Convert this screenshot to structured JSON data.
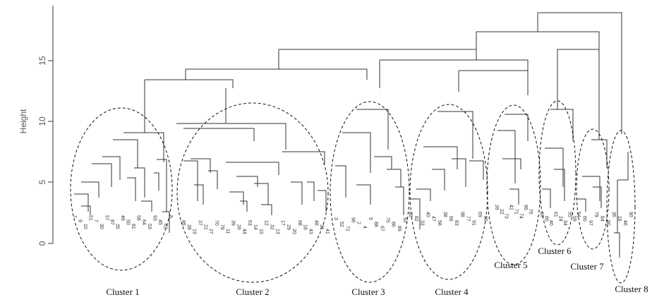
{
  "chart": {
    "ylabel": "Height",
    "yticks": [
      0,
      5,
      10,
      15
    ]
  },
  "clusters": [
    {
      "label": "Cluster 1"
    },
    {
      "label": "Cluster 2"
    },
    {
      "label": "Cluster 3"
    },
    {
      "label": "Cluster 4"
    },
    {
      "label": "Cluster 5"
    },
    {
      "label": "Cluster 6"
    },
    {
      "label": "Cluster 7"
    },
    {
      "label": "Cluster 8"
    }
  ],
  "leaves": [
    "7",
    "9",
    "10",
    "51",
    "7",
    "30",
    "57",
    "87",
    "35",
    "49",
    "50",
    "81",
    "58",
    "64",
    "53",
    "93",
    "45",
    "62",
    "8",
    "85",
    "28",
    "19",
    "37",
    "21",
    "27",
    "70",
    "78",
    "11",
    "39",
    "26",
    "44",
    "63",
    "14",
    "15",
    "12",
    "32",
    "13",
    "17",
    "29",
    "20",
    "68",
    "18",
    "43",
    "48",
    "31",
    "41",
    "3",
    "52",
    "72",
    "96",
    "2",
    "4",
    "5",
    "88",
    "67",
    "75",
    "86",
    "89",
    "92",
    "23",
    "82",
    "33",
    "40",
    "47",
    "58",
    "38",
    "66",
    "83",
    "98",
    "77",
    "91",
    "69",
    "60",
    "26",
    "22",
    "73",
    "42",
    "71",
    "74",
    "95",
    "76",
    "18",
    "65",
    "40",
    "61",
    "24",
    "34",
    "55",
    "59",
    "54",
    "60",
    "97",
    "79",
    "84",
    "80",
    "36",
    "16",
    "46",
    "90"
  ]
}
